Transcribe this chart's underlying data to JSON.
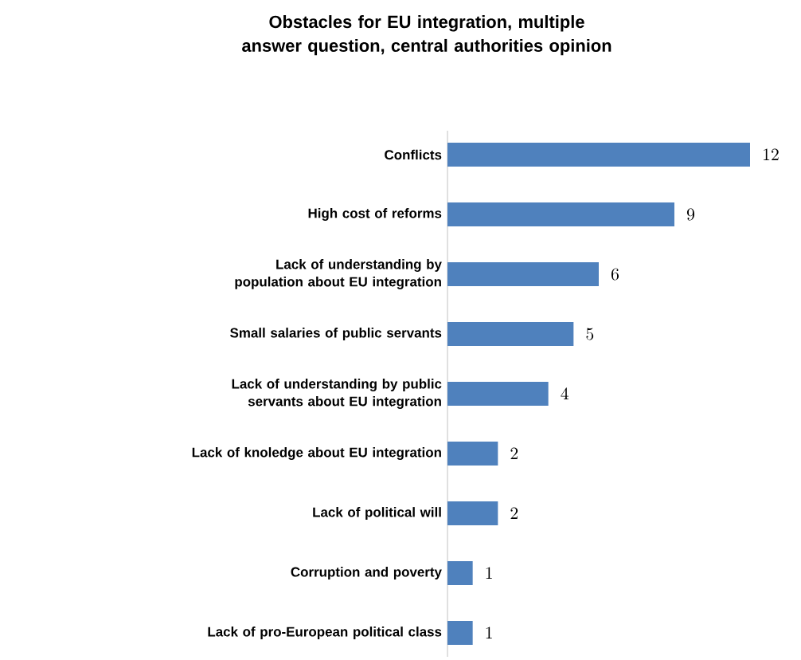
{
  "chart_data": {
    "type": "bar",
    "orientation": "horizontal",
    "title": "Obstacles  for EU integration, multiple answer question, central authorities opinion",
    "categories": [
      "Conflicts",
      "High cost of reforms",
      "Lack of understanding by population about EU integration",
      "Small salaries of public servants",
      "Lack of understanding by public servants about EU integration",
      "Lack of knoledge about EU integration",
      "Lack of political will",
      "Corruption and poverty",
      "Lack of pro-European political class"
    ],
    "values": [
      12,
      9,
      6,
      5,
      4,
      2,
      2,
      1,
      1
    ],
    "color": "#4f81bd",
    "data_labels": true
  }
}
